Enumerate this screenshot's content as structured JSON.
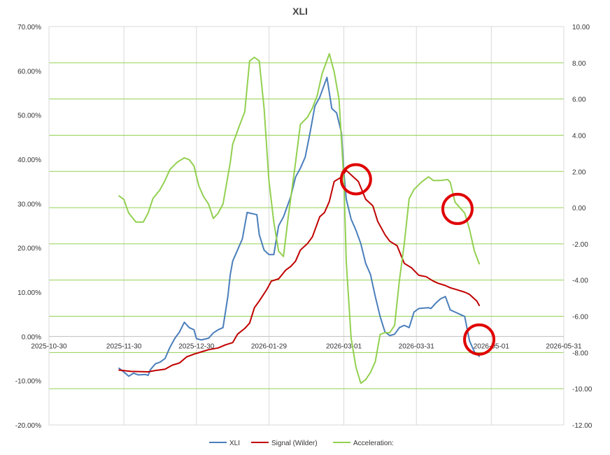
{
  "chart_data": {
    "type": "line",
    "title": "XLI",
    "x_ticks": [
      "2025-10-30",
      "2025-11-30",
      "2025-12-30",
      "2026-01-29",
      "2026-03-01",
      "2026-03-31",
      "2026-05-01",
      "2026-05-31"
    ],
    "left_axis": {
      "ylim": [
        -20,
        70
      ],
      "ticks": [
        "-20.00%",
        "-10.00%",
        "0.00%",
        "10.00%",
        "20.00%",
        "30.00%",
        "40.00%",
        "50.00%",
        "60.00%",
        "70.00%"
      ]
    },
    "right_axis": {
      "ylim": [
        -12,
        10
      ],
      "ticks": [
        "-12.00",
        "-10.00",
        "-8.00",
        "-6.00",
        "-4.00",
        "-2.00",
        "0.00",
        "2.00",
        "4.00",
        "6.00",
        "8.00",
        "10.00"
      ]
    },
    "grid": "vertical gridlines at date ticks; horizontal gridlines (green) at right-axis ticks",
    "legend_position": "bottom",
    "series": [
      {
        "name": "XLI",
        "axis": "left",
        "color": "#4a7ebb",
        "points": [
          [
            "2025-11-28",
            -7.2
          ],
          [
            "2025-12-01",
            -8.5
          ],
          [
            "2025-12-02",
            -9.0
          ],
          [
            "2025-12-04",
            -8.3
          ],
          [
            "2025-12-06",
            -8.7
          ],
          [
            "2025-12-09",
            -8.6
          ],
          [
            "2025-12-10",
            -8.8
          ],
          [
            "2025-12-11",
            -7.5
          ],
          [
            "2025-12-13",
            -6.2
          ],
          [
            "2025-12-15",
            -5.8
          ],
          [
            "2025-12-17",
            -5.0
          ],
          [
            "2025-12-19",
            -2.5
          ],
          [
            "2025-12-21",
            -0.5
          ],
          [
            "2025-12-23",
            1.0
          ],
          [
            "2025-12-25",
            3.2
          ],
          [
            "2025-12-27",
            2.0
          ],
          [
            "2025-12-29",
            1.5
          ],
          [
            "2025-12-30",
            -0.5
          ],
          [
            "2026-01-01",
            -0.8
          ],
          [
            "2026-01-04",
            -0.4
          ],
          [
            "2026-01-06",
            0.8
          ],
          [
            "2026-01-08",
            1.5
          ],
          [
            "2026-01-10",
            2.0
          ],
          [
            "2026-01-12",
            9.0
          ],
          [
            "2026-01-13",
            14.0
          ],
          [
            "2026-01-14",
            17.0
          ],
          [
            "2026-01-16",
            19.5
          ],
          [
            "2026-01-18",
            22.0
          ],
          [
            "2026-01-20",
            28.0
          ],
          [
            "2026-01-24",
            27.5
          ],
          [
            "2026-01-25",
            23.0
          ],
          [
            "2026-01-27",
            19.5
          ],
          [
            "2026-01-29",
            18.5
          ],
          [
            "2026-01-31",
            18.5
          ],
          [
            "2026-02-02",
            25.0
          ],
          [
            "2026-02-04",
            27.0
          ],
          [
            "2026-02-07",
            31.5
          ],
          [
            "2026-02-09",
            36.0
          ],
          [
            "2026-02-11",
            38.0
          ],
          [
            "2026-02-13",
            40.5
          ],
          [
            "2026-02-15",
            46.0
          ],
          [
            "2026-02-17",
            52.0
          ],
          [
            "2026-02-19",
            54.0
          ],
          [
            "2026-02-21",
            57.0
          ],
          [
            "2026-02-22",
            58.5
          ],
          [
            "2026-02-24",
            51.5
          ],
          [
            "2026-02-26",
            50.5
          ],
          [
            "2026-02-28",
            46.0
          ],
          [
            "2026-03-01",
            37.0
          ],
          [
            "2026-03-02",
            31.0
          ],
          [
            "2026-03-04",
            26.5
          ],
          [
            "2026-03-06",
            24.0
          ],
          [
            "2026-03-08",
            21.0
          ],
          [
            "2026-03-10",
            16.5
          ],
          [
            "2026-03-12",
            14.0
          ],
          [
            "2026-03-14",
            9.0
          ],
          [
            "2026-03-16",
            4.5
          ],
          [
            "2026-03-18",
            1.0
          ],
          [
            "2026-03-20",
            0.2
          ],
          [
            "2026-03-22",
            0.5
          ],
          [
            "2026-03-24",
            2.0
          ],
          [
            "2026-03-26",
            2.5
          ],
          [
            "2026-03-28",
            2.0
          ],
          [
            "2026-03-30",
            5.5
          ],
          [
            "2026-04-01",
            6.3
          ],
          [
            "2026-04-05",
            6.5
          ],
          [
            "2026-04-06",
            6.3
          ],
          [
            "2026-04-08",
            7.5
          ],
          [
            "2026-04-10",
            8.5
          ],
          [
            "2026-04-12",
            9.0
          ],
          [
            "2026-04-14",
            6.0
          ],
          [
            "2026-04-16",
            5.5
          ],
          [
            "2026-04-18",
            5.0
          ],
          [
            "2026-04-20",
            4.5
          ],
          [
            "2026-04-22",
            -1.0
          ],
          [
            "2026-04-24",
            -3.5
          ],
          [
            "2026-04-26",
            -4.5
          ]
        ]
      },
      {
        "name": "Signal (Wilder)",
        "axis": "left",
        "color": "#c00000",
        "points": [
          [
            "2025-11-28",
            -7.6
          ],
          [
            "2025-12-03",
            -7.9
          ],
          [
            "2025-12-10",
            -8.0
          ],
          [
            "2025-12-13",
            -7.7
          ],
          [
            "2025-12-17",
            -7.4
          ],
          [
            "2025-12-20",
            -6.5
          ],
          [
            "2025-12-23",
            -6.0
          ],
          [
            "2025-12-26",
            -4.6
          ],
          [
            "2025-12-29",
            -4.0
          ],
          [
            "2026-01-01",
            -3.5
          ],
          [
            "2026-01-04",
            -3.0
          ],
          [
            "2026-01-08",
            -2.6
          ],
          [
            "2026-01-11",
            -1.9
          ],
          [
            "2026-01-14",
            -1.4
          ],
          [
            "2026-01-16",
            0.5
          ],
          [
            "2026-01-19",
            1.8
          ],
          [
            "2026-01-21",
            3.0
          ],
          [
            "2026-01-23",
            6.5
          ],
          [
            "2026-01-25",
            8.0
          ],
          [
            "2026-01-28",
            10.5
          ],
          [
            "2026-01-30",
            12.5
          ],
          [
            "2026-02-02",
            13.0
          ],
          [
            "2026-02-05",
            15.0
          ],
          [
            "2026-02-07",
            15.8
          ],
          [
            "2026-02-09",
            17.0
          ],
          [
            "2026-02-11",
            19.5
          ],
          [
            "2026-02-14",
            21.0
          ],
          [
            "2026-02-16",
            22.5
          ],
          [
            "2026-02-19",
            27.0
          ],
          [
            "2026-02-21",
            28.0
          ],
          [
            "2026-02-23",
            30.5
          ],
          [
            "2026-02-25",
            35.0
          ],
          [
            "2026-02-28",
            36.0
          ],
          [
            "2026-03-02",
            37.5
          ],
          [
            "2026-03-04",
            36.5
          ],
          [
            "2026-03-07",
            35.0
          ],
          [
            "2026-03-10",
            31.0
          ],
          [
            "2026-03-13",
            29.5
          ],
          [
            "2026-03-15",
            26.0
          ],
          [
            "2026-03-18",
            23.0
          ],
          [
            "2026-03-20",
            21.5
          ],
          [
            "2026-03-23",
            20.5
          ],
          [
            "2026-03-26",
            16.5
          ],
          [
            "2026-03-29",
            15.5
          ],
          [
            "2026-04-01",
            13.8
          ],
          [
            "2026-04-04",
            13.5
          ],
          [
            "2026-04-07",
            12.5
          ],
          [
            "2026-04-09",
            12.0
          ],
          [
            "2026-04-12",
            11.5
          ],
          [
            "2026-04-14",
            11.0
          ],
          [
            "2026-04-17",
            10.5
          ],
          [
            "2026-04-20",
            10.0
          ],
          [
            "2026-04-22",
            9.5
          ],
          [
            "2026-04-25",
            8.0
          ],
          [
            "2026-04-26",
            7.0
          ]
        ]
      },
      {
        "name": "Acceleration:",
        "axis": "right",
        "color": "#92d050",
        "points": [
          [
            "2025-11-28",
            0.65
          ],
          [
            "2025-11-30",
            0.45
          ],
          [
            "2025-12-02",
            -0.3
          ],
          [
            "2025-12-05",
            -0.8
          ],
          [
            "2025-12-08",
            -0.8
          ],
          [
            "2025-12-10",
            -0.3
          ],
          [
            "2025-12-12",
            0.5
          ],
          [
            "2025-12-15",
            1.0
          ],
          [
            "2025-12-17",
            1.5
          ],
          [
            "2025-12-19",
            2.1
          ],
          [
            "2025-12-22",
            2.5
          ],
          [
            "2025-12-25",
            2.75
          ],
          [
            "2025-12-27",
            2.65
          ],
          [
            "2025-12-29",
            2.3
          ],
          [
            "2025-12-31",
            1.2
          ],
          [
            "2026-01-02",
            0.6
          ],
          [
            "2026-01-04",
            0.2
          ],
          [
            "2026-01-06",
            -0.6
          ],
          [
            "2026-01-08",
            -0.3
          ],
          [
            "2026-01-10",
            0.2
          ],
          [
            "2026-01-13",
            2.5
          ],
          [
            "2026-01-14",
            3.5
          ],
          [
            "2026-01-17",
            4.6
          ],
          [
            "2026-01-19",
            5.3
          ],
          [
            "2026-01-21",
            8.1
          ],
          [
            "2026-01-23",
            8.3
          ],
          [
            "2026-01-25",
            8.1
          ],
          [
            "2026-01-27",
            5.5
          ],
          [
            "2026-01-29",
            1.5
          ],
          [
            "2026-01-31",
            -0.8
          ],
          [
            "2026-02-02",
            -2.4
          ],
          [
            "2026-02-04",
            -2.7
          ],
          [
            "2026-02-06",
            -0.5
          ],
          [
            "2026-02-09",
            2.5
          ],
          [
            "2026-02-11",
            4.6
          ],
          [
            "2026-02-14",
            5.0
          ],
          [
            "2026-02-16",
            5.5
          ],
          [
            "2026-02-18",
            6.2
          ],
          [
            "2026-02-20",
            7.4
          ],
          [
            "2026-02-23",
            8.5
          ],
          [
            "2026-02-25",
            7.5
          ],
          [
            "2026-02-27",
            6.0
          ],
          [
            "2026-03-01",
            1.5
          ],
          [
            "2026-03-02",
            -3.0
          ],
          [
            "2026-03-04",
            -7.2
          ],
          [
            "2026-03-06",
            -8.8
          ],
          [
            "2026-03-08",
            -9.7
          ],
          [
            "2026-03-10",
            -9.5
          ],
          [
            "2026-03-12",
            -9.1
          ],
          [
            "2026-03-14",
            -8.5
          ],
          [
            "2026-03-16",
            -7.0
          ],
          [
            "2026-03-18",
            -6.9
          ],
          [
            "2026-03-20",
            -6.9
          ],
          [
            "2026-03-22",
            -6.5
          ],
          [
            "2026-03-24",
            -4.0
          ],
          [
            "2026-03-26",
            -2.0
          ],
          [
            "2026-03-28",
            0.5
          ],
          [
            "2026-03-30",
            1.0
          ],
          [
            "2026-04-02",
            1.4
          ],
          [
            "2026-04-05",
            1.7
          ],
          [
            "2026-04-07",
            1.5
          ],
          [
            "2026-04-10",
            1.5
          ],
          [
            "2026-04-13",
            1.55
          ],
          [
            "2026-04-14",
            1.4
          ],
          [
            "2026-04-16",
            0.3
          ],
          [
            "2026-04-18",
            0.0
          ],
          [
            "2026-04-20",
            -0.3
          ],
          [
            "2026-04-22",
            -1.2
          ],
          [
            "2026-04-24",
            -2.4
          ],
          [
            "2026-04-26",
            -3.1
          ]
        ]
      }
    ],
    "annotations": [
      {
        "shape": "circle",
        "color": "#e00000",
        "x": "2026-03-06",
        "axis": "left",
        "y": 35.5
      },
      {
        "shape": "circle",
        "color": "#e00000",
        "x": "2026-04-17",
        "axis": "left",
        "y": 28.8
      },
      {
        "shape": "circle",
        "color": "#e00000",
        "x": "2026-04-26",
        "axis": "left",
        "y": -0.7
      }
    ]
  }
}
